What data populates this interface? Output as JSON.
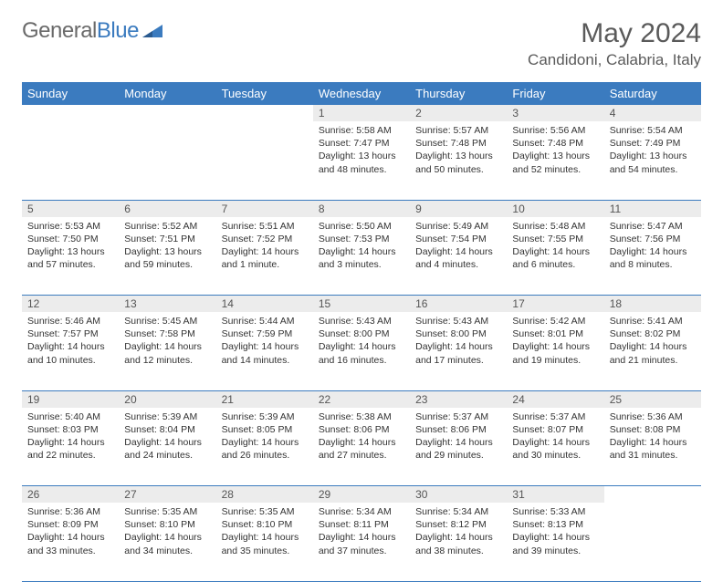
{
  "brand": {
    "part1": "General",
    "part2": "Blue"
  },
  "title": "May 2024",
  "location": "Candidoni, Calabria, Italy",
  "colors": {
    "header_bg": "#3b7bbf",
    "daynum_bg": "#ececec",
    "row_border": "#3b7bbf",
    "text": "#333333",
    "title_text": "#5a5a5a"
  },
  "day_headers": [
    "Sunday",
    "Monday",
    "Tuesday",
    "Wednesday",
    "Thursday",
    "Friday",
    "Saturday"
  ],
  "weeks": [
    {
      "nums": [
        "",
        "",
        "",
        "1",
        "2",
        "3",
        "4"
      ],
      "cells": [
        null,
        null,
        null,
        {
          "sr": "5:58 AM",
          "ss": "7:47 PM",
          "dh": 13,
          "dm": 48
        },
        {
          "sr": "5:57 AM",
          "ss": "7:48 PM",
          "dh": 13,
          "dm": 50
        },
        {
          "sr": "5:56 AM",
          "ss": "7:48 PM",
          "dh": 13,
          "dm": 52
        },
        {
          "sr": "5:54 AM",
          "ss": "7:49 PM",
          "dh": 13,
          "dm": 54
        }
      ]
    },
    {
      "nums": [
        "5",
        "6",
        "7",
        "8",
        "9",
        "10",
        "11"
      ],
      "cells": [
        {
          "sr": "5:53 AM",
          "ss": "7:50 PM",
          "dh": 13,
          "dm": 57
        },
        {
          "sr": "5:52 AM",
          "ss": "7:51 PM",
          "dh": 13,
          "dm": 59
        },
        {
          "sr": "5:51 AM",
          "ss": "7:52 PM",
          "dh": 14,
          "dm": 1
        },
        {
          "sr": "5:50 AM",
          "ss": "7:53 PM",
          "dh": 14,
          "dm": 3
        },
        {
          "sr": "5:49 AM",
          "ss": "7:54 PM",
          "dh": 14,
          "dm": 4
        },
        {
          "sr": "5:48 AM",
          "ss": "7:55 PM",
          "dh": 14,
          "dm": 6
        },
        {
          "sr": "5:47 AM",
          "ss": "7:56 PM",
          "dh": 14,
          "dm": 8
        }
      ]
    },
    {
      "nums": [
        "12",
        "13",
        "14",
        "15",
        "16",
        "17",
        "18"
      ],
      "cells": [
        {
          "sr": "5:46 AM",
          "ss": "7:57 PM",
          "dh": 14,
          "dm": 10
        },
        {
          "sr": "5:45 AM",
          "ss": "7:58 PM",
          "dh": 14,
          "dm": 12
        },
        {
          "sr": "5:44 AM",
          "ss": "7:59 PM",
          "dh": 14,
          "dm": 14
        },
        {
          "sr": "5:43 AM",
          "ss": "8:00 PM",
          "dh": 14,
          "dm": 16
        },
        {
          "sr": "5:43 AM",
          "ss": "8:00 PM",
          "dh": 14,
          "dm": 17
        },
        {
          "sr": "5:42 AM",
          "ss": "8:01 PM",
          "dh": 14,
          "dm": 19
        },
        {
          "sr": "5:41 AM",
          "ss": "8:02 PM",
          "dh": 14,
          "dm": 21
        }
      ]
    },
    {
      "nums": [
        "19",
        "20",
        "21",
        "22",
        "23",
        "24",
        "25"
      ],
      "cells": [
        {
          "sr": "5:40 AM",
          "ss": "8:03 PM",
          "dh": 14,
          "dm": 22
        },
        {
          "sr": "5:39 AM",
          "ss": "8:04 PM",
          "dh": 14,
          "dm": 24
        },
        {
          "sr": "5:39 AM",
          "ss": "8:05 PM",
          "dh": 14,
          "dm": 26
        },
        {
          "sr": "5:38 AM",
          "ss": "8:06 PM",
          "dh": 14,
          "dm": 27
        },
        {
          "sr": "5:37 AM",
          "ss": "8:06 PM",
          "dh": 14,
          "dm": 29
        },
        {
          "sr": "5:37 AM",
          "ss": "8:07 PM",
          "dh": 14,
          "dm": 30
        },
        {
          "sr": "5:36 AM",
          "ss": "8:08 PM",
          "dh": 14,
          "dm": 31
        }
      ]
    },
    {
      "nums": [
        "26",
        "27",
        "28",
        "29",
        "30",
        "31",
        ""
      ],
      "cells": [
        {
          "sr": "5:36 AM",
          "ss": "8:09 PM",
          "dh": 14,
          "dm": 33
        },
        {
          "sr": "5:35 AM",
          "ss": "8:10 PM",
          "dh": 14,
          "dm": 34
        },
        {
          "sr": "5:35 AM",
          "ss": "8:10 PM",
          "dh": 14,
          "dm": 35
        },
        {
          "sr": "5:34 AM",
          "ss": "8:11 PM",
          "dh": 14,
          "dm": 37
        },
        {
          "sr": "5:34 AM",
          "ss": "8:12 PM",
          "dh": 14,
          "dm": 38
        },
        {
          "sr": "5:33 AM",
          "ss": "8:13 PM",
          "dh": 14,
          "dm": 39
        },
        null
      ]
    }
  ],
  "labels": {
    "sunrise": "Sunrise:",
    "sunset": "Sunset:",
    "daylight": "Daylight:",
    "hours": "hours",
    "and": "and",
    "minutes": "minutes.",
    "minute": "minute."
  }
}
